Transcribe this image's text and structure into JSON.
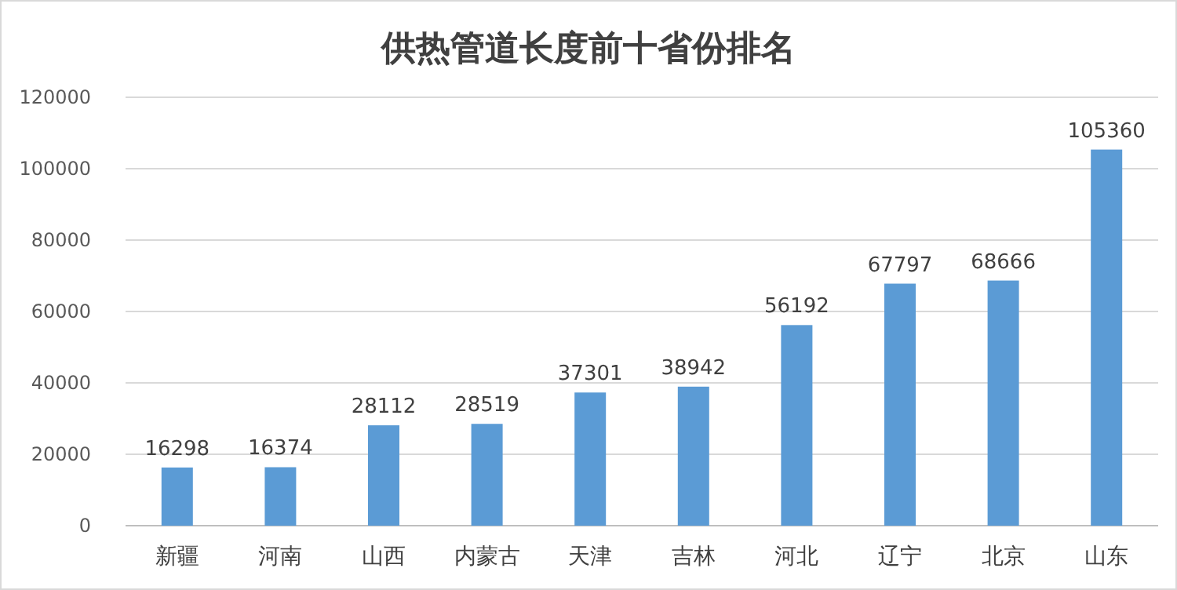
{
  "chart_data": {
    "type": "bar",
    "title": "供热管道长度前十省份排名",
    "categories": [
      "新疆",
      "河南",
      "山西",
      "内蒙古",
      "天津",
      "吉林",
      "河北",
      "辽宁",
      "北京",
      "山东"
    ],
    "values": [
      16298,
      16374,
      28112,
      28519,
      37301,
      38942,
      56192,
      67797,
      68666,
      105360
    ],
    "color": "#5b9bd5",
    "ylim": [
      0,
      120000
    ],
    "yticks": [
      0,
      20000,
      40000,
      60000,
      80000,
      100000,
      120000
    ],
    "grid": "y",
    "data_labels": true
  }
}
